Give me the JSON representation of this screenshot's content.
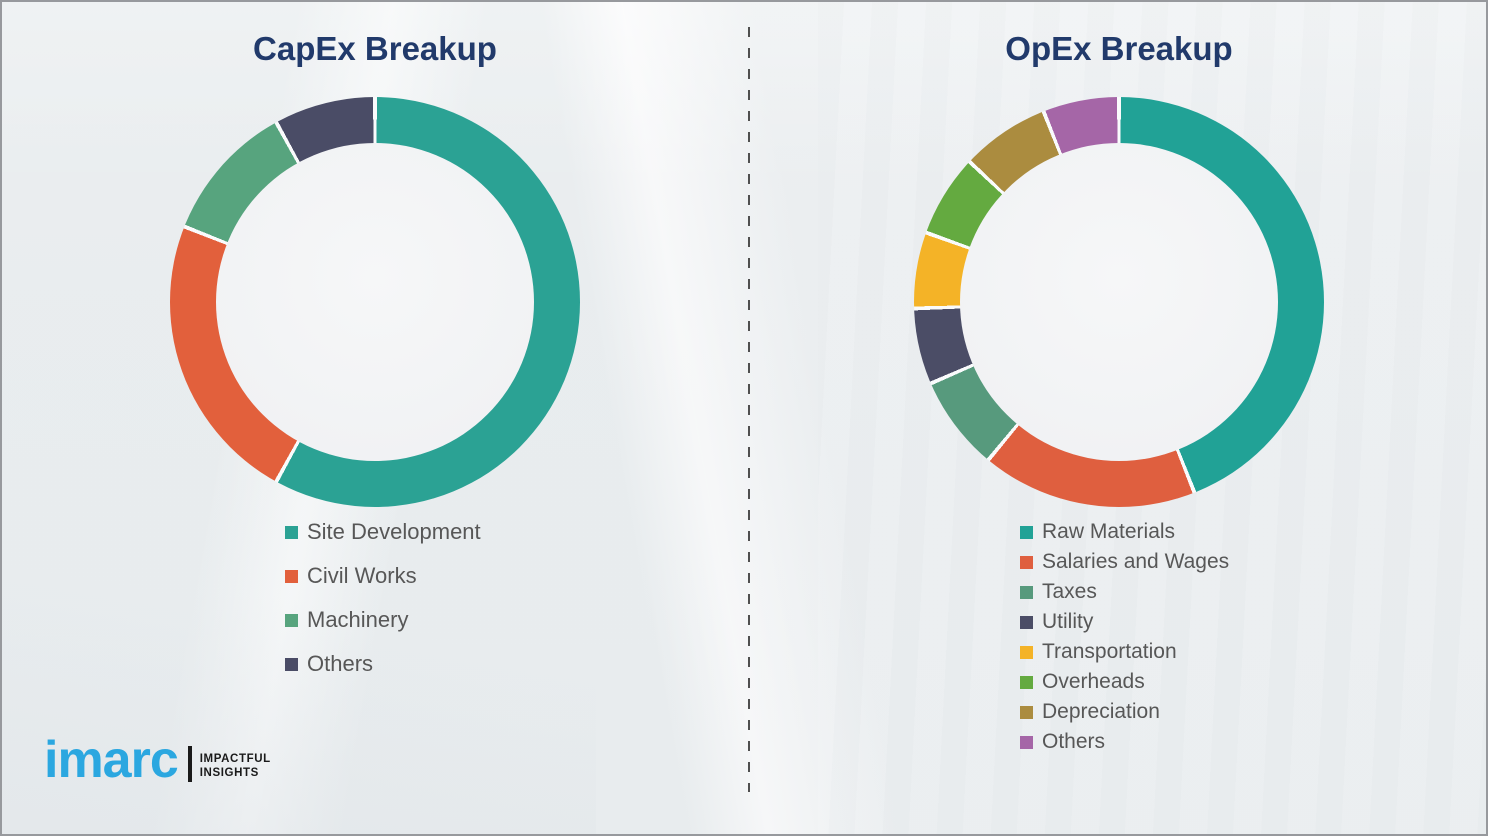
{
  "page": {
    "background_color": "#eef0f2",
    "border_color": "#97999d",
    "divider_style": "vertical-dashed",
    "divider_color": "#4f4f4f"
  },
  "branding": {
    "logo_text": "imarc",
    "logo_color": "#2ba7e0",
    "tagline_line1": "IMPACTFUL",
    "tagline_line2": "INSIGHTS",
    "tagline_color": "#1a1a1a"
  },
  "chart_data": [
    {
      "type": "pie",
      "subtype": "donut",
      "title": "CapEx Breakup",
      "title_color": "#213a6b",
      "categories": [
        "Site Development",
        "Civil Works",
        "Machinery",
        "Others"
      ],
      "values": [
        58,
        23,
        11,
        8
      ],
      "unit": "percent (estimated from arc angles; no data labels shown)",
      "colors": [
        "#2ba294",
        "#e2603c",
        "#57a47e",
        "#4a4c66"
      ],
      "start_angle_deg": 0,
      "direction": "clockwise",
      "gap_color": "#fafbfc",
      "legend_position": "below-chart-left",
      "legend_text_color": "#575757"
    },
    {
      "type": "pie",
      "subtype": "donut",
      "title": "OpEx Breakup",
      "title_color": "#213a6b",
      "categories": [
        "Raw Materials",
        "Salaries and Wages",
        "Taxes",
        "Utility",
        "Transportation",
        "Overheads",
        "Depreciation",
        "Others"
      ],
      "values": [
        44,
        17,
        7.5,
        6,
        6,
        6.5,
        7,
        6
      ],
      "unit": "percent (estimated from arc angles; no data labels shown)",
      "colors": [
        "#21a296",
        "#df5f3f",
        "#579a7d",
        "#4b4d66",
        "#f4b327",
        "#64aa40",
        "#ab8c3f",
        "#a566a7"
      ],
      "start_angle_deg": 0,
      "direction": "clockwise",
      "gap_color": "#fafbfc",
      "legend_position": "below-chart-left",
      "legend_text_color": "#575757"
    }
  ]
}
